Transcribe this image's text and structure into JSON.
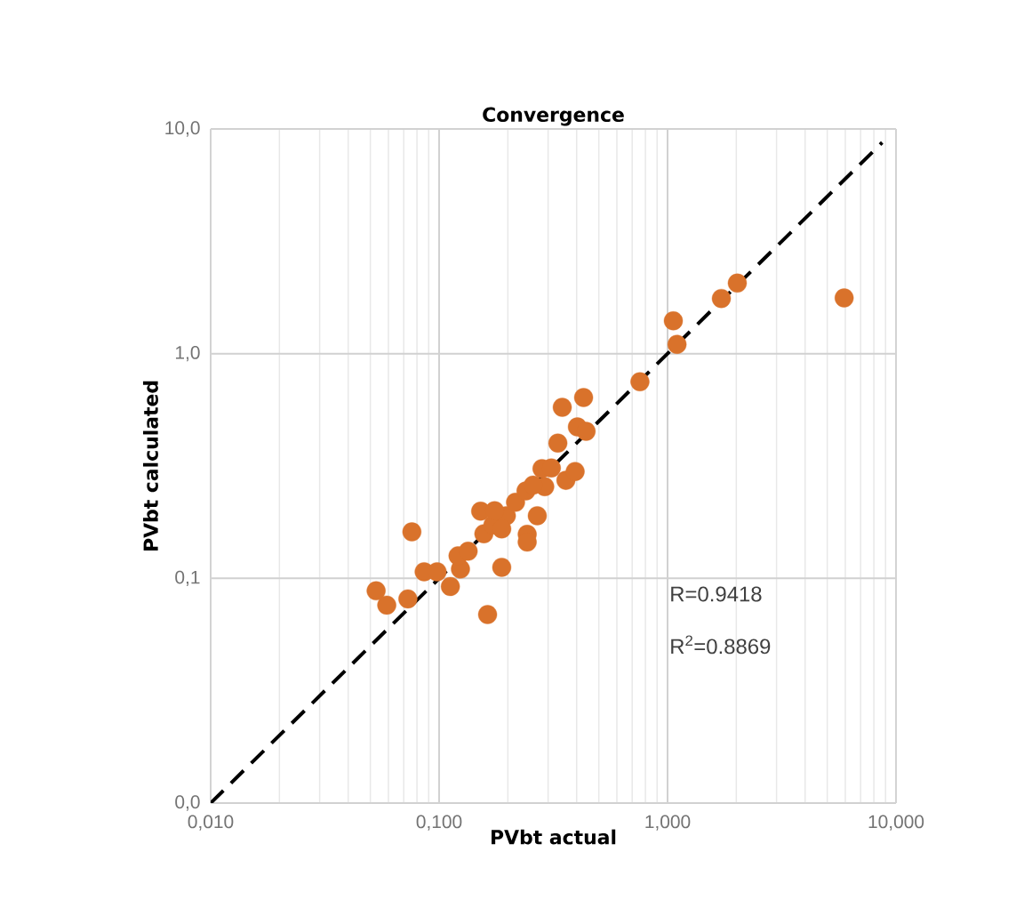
{
  "chart_data": {
    "type": "scatter",
    "title": "Convergence",
    "xlabel": "PVbt actual",
    "ylabel": "PVbt calculated",
    "log": "xy",
    "grid": true,
    "marker": "circle",
    "xlim": [
      0.01,
      10
    ],
    "ylim": [
      0.01,
      10
    ],
    "xticks": [
      {
        "value": 0.01,
        "label": "0,010"
      },
      {
        "value": 0.1,
        "label": "0,100"
      },
      {
        "value": 1,
        "label": "1,000"
      },
      {
        "value": 10,
        "label": "10,000"
      }
    ],
    "yticks": [
      {
        "value": 0.01,
        "label": "0,0"
      },
      {
        "value": 0.1,
        "label": "0,1"
      },
      {
        "value": 1,
        "label": "1,0"
      },
      {
        "value": 10,
        "label": "10,0"
      }
    ],
    "series": [
      {
        "color": "#d9722b",
        "x": [
          0.053,
          0.059,
          0.073,
          0.076,
          0.086,
          0.098,
          0.112,
          0.124,
          0.121,
          0.134,
          0.163,
          0.188,
          0.152,
          0.157,
          0.172,
          0.18,
          0.197,
          0.188,
          0.216,
          0.24,
          0.269,
          0.243,
          0.243,
          0.282,
          0.31,
          0.331,
          0.346,
          0.429,
          0.403,
          0.44,
          0.359,
          0.394,
          0.29,
          0.258,
          0.175,
          0.757,
          1.1,
          1.06,
          1.72,
          2.02,
          5.93
        ],
        "values": [
          0.088,
          0.076,
          0.081,
          0.161,
          0.107,
          0.107,
          0.092,
          0.11,
          0.126,
          0.132,
          0.069,
          0.112,
          0.199,
          0.158,
          0.173,
          null,
          0.19,
          0.166,
          0.218,
          0.245,
          0.19,
          0.157,
          0.145,
          0.308,
          0.31,
          0.4,
          0.577,
          0.638,
          0.472,
          0.451,
          0.273,
          0.299,
          0.256,
          0.26,
          0.2,
          0.75,
          1.1,
          1.4,
          1.76,
          2.06,
          1.77
        ]
      },
      {
        "type": "line",
        "color": "#000000",
        "line_style": "dashed",
        "marker": "none",
        "x": [
          0.01,
          8.7
        ],
        "values": [
          0.01,
          8.7
        ]
      }
    ],
    "annotations": [
      "R=0.9418",
      "R$^{2}$=0.8869"
    ]
  }
}
